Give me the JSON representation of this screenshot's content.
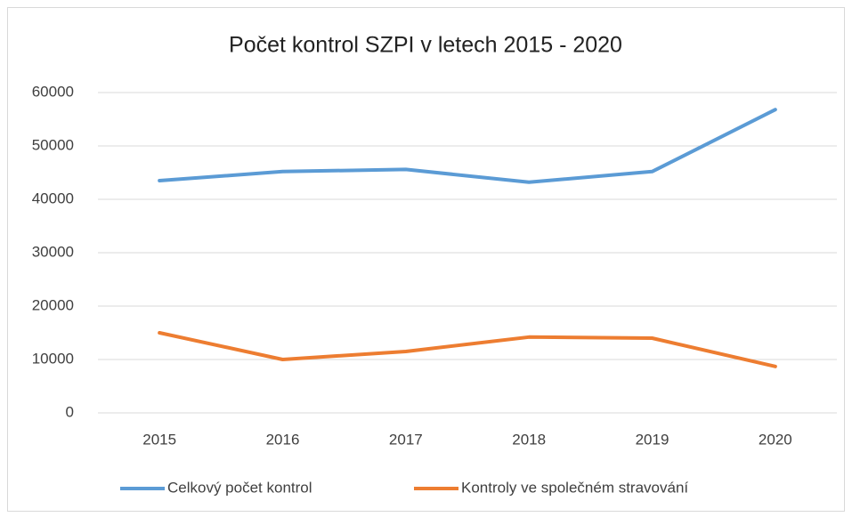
{
  "chart_data": {
    "type": "line",
    "title": "Počet kontrol SZPI v letech 2015 - 2020",
    "categories": [
      "2015",
      "2016",
      "2017",
      "2018",
      "2019",
      "2020"
    ],
    "series": [
      {
        "name": "Celkový počet kontrol",
        "color": "#5b9bd5",
        "values": [
          43500,
          45200,
          45600,
          43200,
          45200,
          56800
        ]
      },
      {
        "name": "Kontroly ve společném stravování",
        "color": "#ed7d31",
        "values": [
          15000,
          10000,
          11500,
          14200,
          14000,
          8700
        ]
      }
    ],
    "ylim": [
      0,
      60000
    ],
    "yticks": [
      0,
      10000,
      20000,
      30000,
      40000,
      50000,
      60000
    ],
    "grid": true,
    "legend": "bottom"
  }
}
